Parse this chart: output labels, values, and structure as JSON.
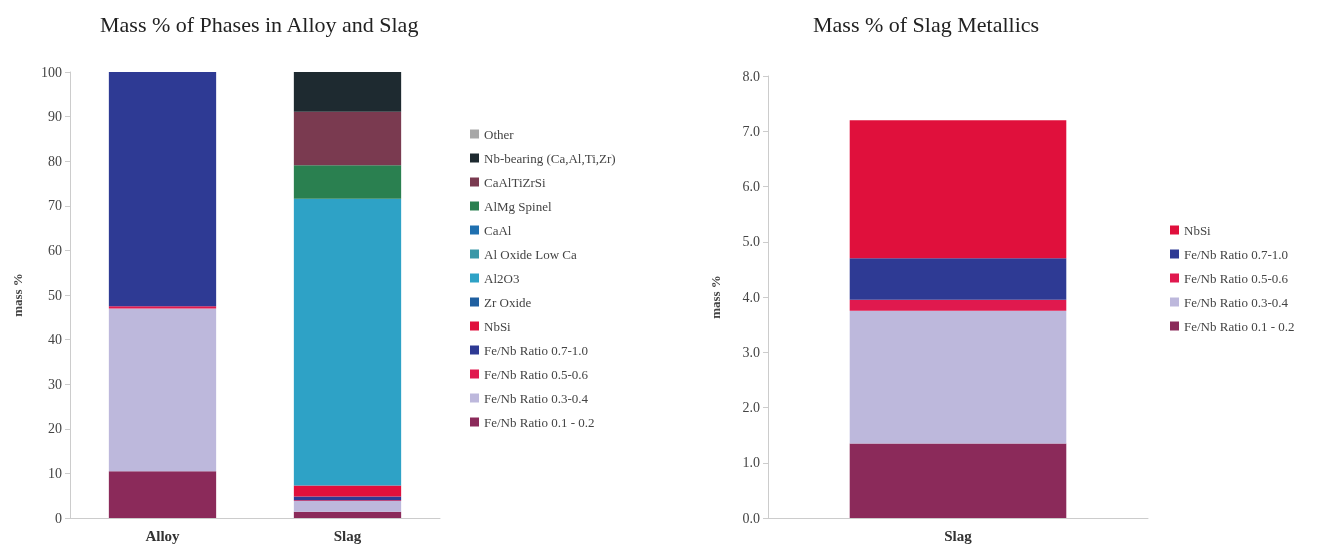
{
  "chart_data": [
    {
      "type": "bar",
      "title": "Mass % of Phases in Alloy and Slag",
      "ylabel": "mass %",
      "categories": [
        "Alloy",
        "Slag"
      ],
      "stacked": true,
      "legend": "right",
      "ylim": [
        0,
        100
      ],
      "yticks": [
        0,
        10,
        20,
        30,
        40,
        50,
        60,
        70,
        80,
        90,
        100
      ],
      "series": [
        {
          "name": "Fe/Nb Ratio 0.1 - 0.2",
          "color": "#8b2a5a",
          "values": [
            10.5,
            1.4
          ]
        },
        {
          "name": "Fe/Nb Ratio 0.3-0.4",
          "color": "#bdb8dc",
          "values": [
            36.5,
            2.4
          ]
        },
        {
          "name": "Fe/Nb Ratio 0.5-0.6",
          "color": "#e0194e",
          "values": [
            0.5,
            0.2
          ]
        },
        {
          "name": "Fe/Nb Ratio 0.7-1.0",
          "color": "#2e3a94",
          "values": [
            52.5,
            0.8
          ]
        },
        {
          "name": "NbSi",
          "color": "#e0103c",
          "values": [
            0,
            2.5
          ]
        },
        {
          "name": "Zr Oxide",
          "color": "#1f5fa0",
          "values": [
            0,
            0
          ]
        },
        {
          "name": "Al2O3",
          "color": "#2ea2c6",
          "values": [
            0,
            64.3
          ]
        },
        {
          "name": "Al Oxide Low Ca",
          "color": "#3a98a8",
          "values": [
            0,
            0
          ]
        },
        {
          "name": "CaAl",
          "color": "#2070b0",
          "values": [
            0,
            0
          ]
        },
        {
          "name": "AlMg Spinel",
          "color": "#2a8050",
          "values": [
            0,
            7.5
          ]
        },
        {
          "name": "CaAlTiZrSi",
          "color": "#7a3a50",
          "values": [
            0,
            12
          ]
        },
        {
          "name": "Nb-bearing (Ca,Al,Ti,Zr)",
          "color": "#1e2a30",
          "values": [
            0,
            9
          ]
        },
        {
          "name": "Other",
          "color": "#a8a8a8",
          "values": [
            0,
            0
          ]
        }
      ]
    },
    {
      "type": "bar",
      "title": "Mass % of Slag Metallics",
      "ylabel": "mass %",
      "categories": [
        "Slag"
      ],
      "stacked": true,
      "legend": "right",
      "ylim": [
        0,
        8
      ],
      "yticks": [
        {
          "value": 0,
          "label": "0.0"
        },
        {
          "value": 1,
          "label": "1.0"
        },
        {
          "value": 2,
          "label": "2.0"
        },
        {
          "value": 3,
          "label": "3.0"
        },
        {
          "value": 4,
          "label": "4.0"
        },
        {
          "value": 5,
          "label": "5.0"
        },
        {
          "value": 6,
          "label": "6.0"
        },
        {
          "value": 7,
          "label": "7.0"
        },
        {
          "value": 8,
          "label": "8.0"
        }
      ],
      "series": [
        {
          "name": "Fe/Nb Ratio 0.1 - 0.2",
          "color": "#8b2a5a",
          "values": [
            1.35
          ]
        },
        {
          "name": "Fe/Nb Ratio 0.3-0.4",
          "color": "#bdb8dc",
          "values": [
            2.4
          ]
        },
        {
          "name": "Fe/Nb Ratio 0.5-0.6",
          "color": "#e0194e",
          "values": [
            0.2
          ]
        },
        {
          "name": "Fe/Nb Ratio 0.7-1.0",
          "color": "#2e3a94",
          "values": [
            0.75
          ]
        },
        {
          "name": "NbSi",
          "color": "#e0103c",
          "values": [
            2.5
          ]
        }
      ]
    }
  ]
}
